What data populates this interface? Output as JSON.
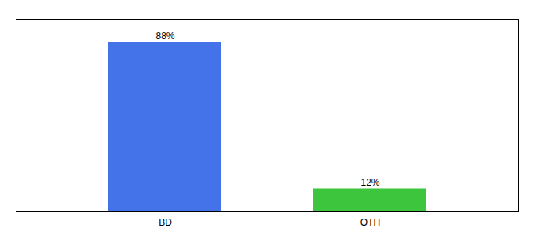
{
  "chart_data": {
    "type": "bar",
    "categories": [
      "BD",
      "OTH"
    ],
    "values": [
      88,
      12
    ],
    "value_labels": [
      "88%",
      "12%"
    ],
    "colors": [
      "#4472e8",
      "#3dc63d"
    ],
    "ylim": [
      0,
      100
    ],
    "data_labels": true,
    "tick_labels": "x"
  }
}
